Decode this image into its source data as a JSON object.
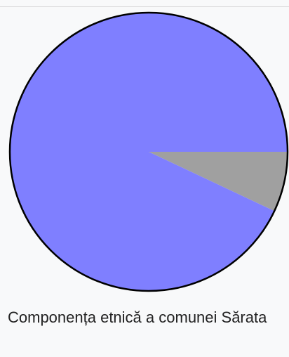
{
  "chart_data": {
    "type": "pie",
    "title": "",
    "slices": [
      {
        "label": "",
        "value": 93.0,
        "color": "#7f7fff"
      },
      {
        "label": "",
        "value": 7.0,
        "color": "#a0a0a0"
      }
    ],
    "outline_color": "#000000",
    "legend": "none"
  },
  "caption": {
    "text": "Componența etnică a comunei Sărata"
  }
}
